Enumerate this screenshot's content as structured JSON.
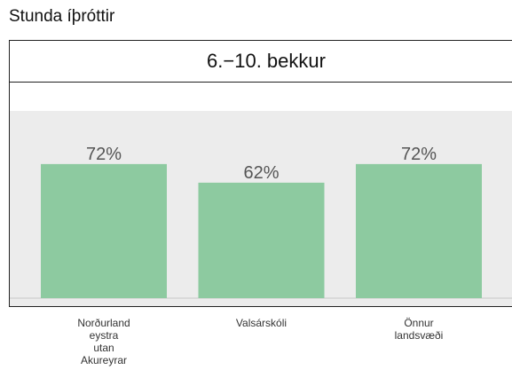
{
  "page": {
    "title": "Stunda íþróttir"
  },
  "chart_data": {
    "type": "bar",
    "facet_label": "6.−10. bekkur",
    "categories": [
      "Norðurland\neystra\nutan\nAkureyrar",
      "Valsárskóli",
      "Önnur\nlandsvæði"
    ],
    "values": [
      72,
      62,
      72
    ],
    "data_labels": [
      "72%",
      "62%",
      "72%"
    ],
    "ylim": [
      0,
      100
    ],
    "grid": false,
    "legend": "none",
    "colors": {
      "bar": "#8dcaa0",
      "panel": "#ececec",
      "label": "#555555"
    }
  }
}
